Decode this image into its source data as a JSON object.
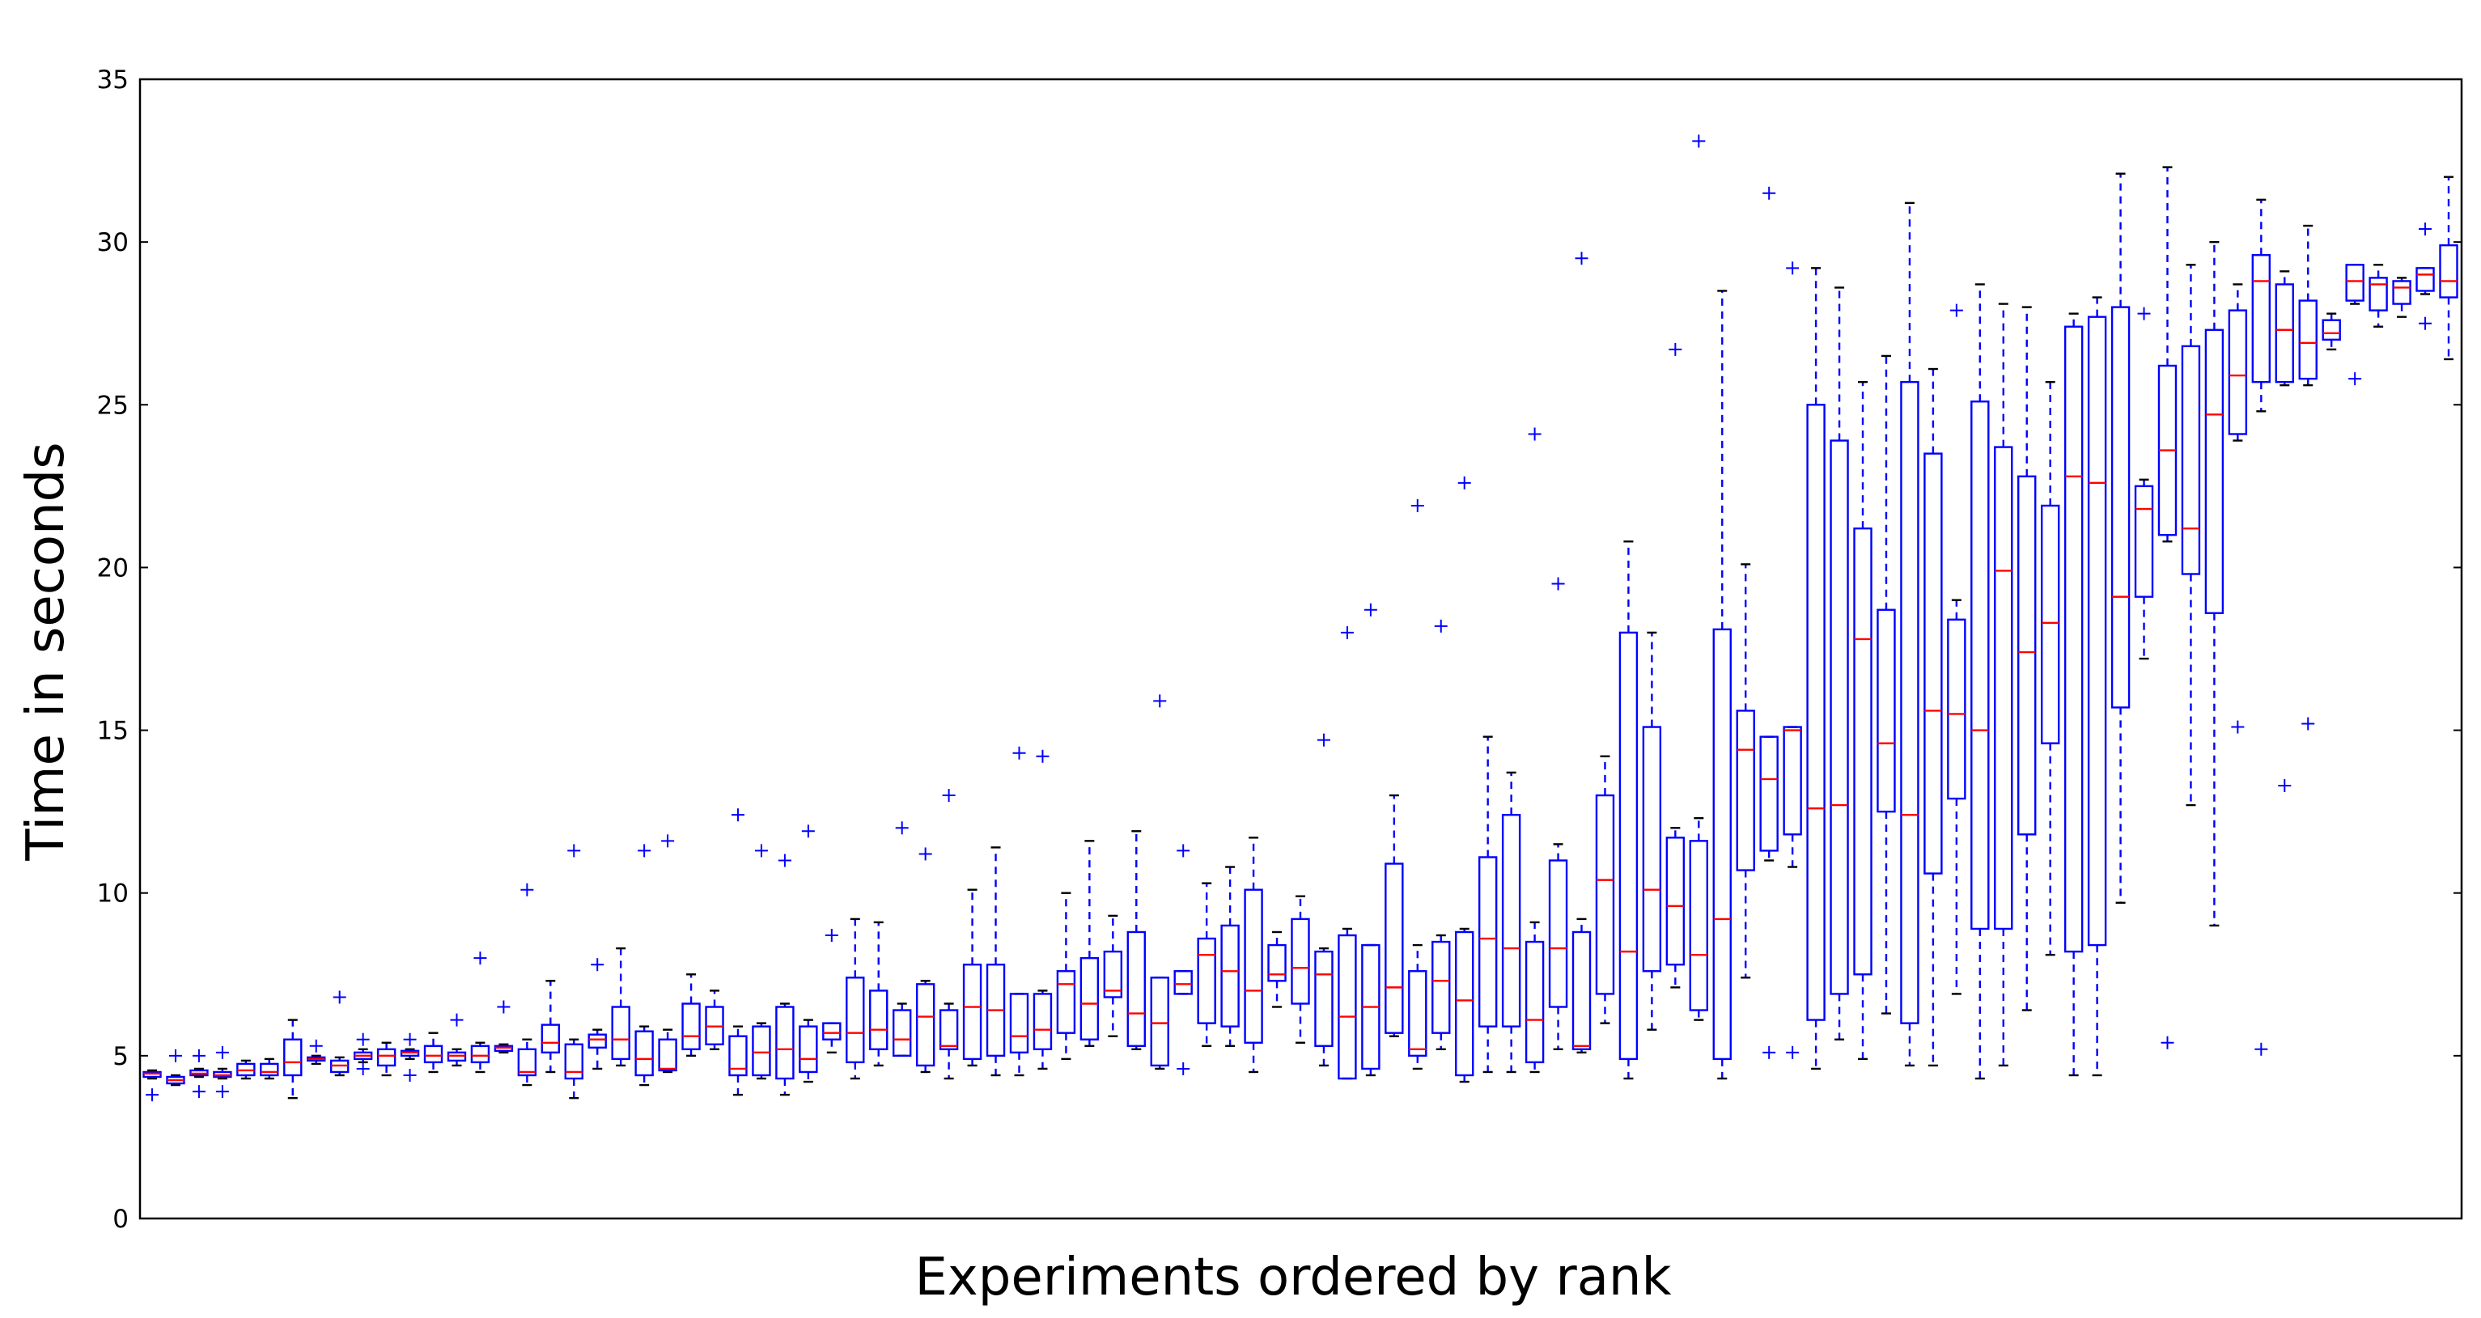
{
  "chart_data": {
    "type": "boxplot",
    "xlabel": "Experiments ordered by rank",
    "ylabel": "Time in seconds",
    "ylim": [
      0,
      35
    ],
    "yticks": [
      0,
      5,
      10,
      15,
      20,
      25,
      30,
      35
    ],
    "grid": false,
    "colors": {
      "box": "#0000ff",
      "median": "#ff0000",
      "whisker": "#0000ff",
      "cap": "#000000",
      "outlier": "#0000ff"
    },
    "boxes": [
      {
        "wl": 4.3,
        "q1": 4.35,
        "med": 4.45,
        "q3": 4.5,
        "wh": 4.55,
        "out": [
          3.8
        ]
      },
      {
        "wl": 4.1,
        "q1": 4.15,
        "med": 4.25,
        "q3": 4.35,
        "wh": 4.4,
        "out": [
          5.0
        ]
      },
      {
        "wl": 4.35,
        "q1": 4.4,
        "med": 4.45,
        "q3": 4.55,
        "wh": 4.6,
        "out": [
          3.9,
          5.0
        ]
      },
      {
        "wl": 4.3,
        "q1": 4.35,
        "med": 4.4,
        "q3": 4.5,
        "wh": 4.6,
        "out": [
          3.9,
          5.1
        ]
      },
      {
        "wl": 4.3,
        "q1": 4.4,
        "med": 4.55,
        "q3": 4.75,
        "wh": 4.85,
        "out": []
      },
      {
        "wl": 4.3,
        "q1": 4.4,
        "med": 4.5,
        "q3": 4.75,
        "wh": 4.9,
        "out": []
      },
      {
        "wl": 3.7,
        "q1": 4.4,
        "med": 4.8,
        "q3": 5.5,
        "wh": 6.1,
        "out": []
      },
      {
        "wl": 4.75,
        "q1": 4.85,
        "med": 4.9,
        "q3": 4.95,
        "wh": 5.0,
        "out": [
          5.3
        ]
      },
      {
        "wl": 4.4,
        "q1": 4.5,
        "med": 4.7,
        "q3": 4.85,
        "wh": 4.95,
        "out": [
          6.8
        ]
      },
      {
        "wl": 4.8,
        "q1": 4.9,
        "med": 5.0,
        "q3": 5.1,
        "wh": 5.2,
        "out": [
          4.6,
          5.5
        ]
      },
      {
        "wl": 4.4,
        "q1": 4.7,
        "med": 5.0,
        "q3": 5.2,
        "wh": 5.4,
        "out": []
      },
      {
        "wl": 4.9,
        "q1": 5.0,
        "med": 5.1,
        "q3": 5.15,
        "wh": 5.2,
        "out": [
          4.4,
          5.5
        ]
      },
      {
        "wl": 4.5,
        "q1": 4.8,
        "med": 5.0,
        "q3": 5.3,
        "wh": 5.7,
        "out": []
      },
      {
        "wl": 4.7,
        "q1": 4.85,
        "med": 5.0,
        "q3": 5.1,
        "wh": 5.2,
        "out": [
          6.1
        ]
      },
      {
        "wl": 4.5,
        "q1": 4.8,
        "med": 5.0,
        "q3": 5.3,
        "wh": 5.4,
        "out": [
          8.0
        ]
      },
      {
        "wl": 5.1,
        "q1": 5.15,
        "med": 5.25,
        "q3": 5.3,
        "wh": 5.35,
        "out": [
          6.5
        ]
      },
      {
        "wl": 4.1,
        "q1": 4.4,
        "med": 4.5,
        "q3": 5.2,
        "wh": 5.5,
        "out": [
          10.1
        ]
      },
      {
        "wl": 4.5,
        "q1": 5.1,
        "med": 5.4,
        "q3": 5.95,
        "wh": 7.3,
        "out": []
      },
      {
        "wl": 3.7,
        "q1": 4.3,
        "med": 4.5,
        "q3": 5.35,
        "wh": 5.5,
        "out": [
          11.3
        ]
      },
      {
        "wl": 4.6,
        "q1": 5.25,
        "med": 5.5,
        "q3": 5.65,
        "wh": 5.8,
        "out": [
          7.8
        ]
      },
      {
        "wl": 4.7,
        "q1": 4.9,
        "med": 5.5,
        "q3": 6.5,
        "wh": 8.3,
        "out": []
      },
      {
        "wl": 4.1,
        "q1": 4.4,
        "med": 4.9,
        "q3": 5.75,
        "wh": 5.9,
        "out": [
          11.3
        ]
      },
      {
        "wl": 4.5,
        "q1": 4.55,
        "med": 4.6,
        "q3": 5.5,
        "wh": 5.8,
        "out": [
          11.6
        ]
      },
      {
        "wl": 5.0,
        "q1": 5.2,
        "med": 5.6,
        "q3": 6.6,
        "wh": 7.5,
        "out": []
      },
      {
        "wl": 5.2,
        "q1": 5.35,
        "med": 5.9,
        "q3": 6.5,
        "wh": 7.0,
        "out": []
      },
      {
        "wl": 3.8,
        "q1": 4.4,
        "med": 4.6,
        "q3": 5.6,
        "wh": 5.9,
        "out": [
          12.4
        ]
      },
      {
        "wl": 4.3,
        "q1": 4.4,
        "med": 5.1,
        "q3": 5.9,
        "wh": 6.0,
        "out": [
          11.3
        ]
      },
      {
        "wl": 3.8,
        "q1": 4.3,
        "med": 5.2,
        "q3": 6.5,
        "wh": 6.6,
        "out": [
          11.0
        ]
      },
      {
        "wl": 4.2,
        "q1": 4.5,
        "med": 4.9,
        "q3": 5.9,
        "wh": 6.1,
        "out": [
          11.9
        ]
      },
      {
        "wl": 5.1,
        "q1": 5.5,
        "med": 5.7,
        "q3": 6.0,
        "wh": 6.0,
        "out": [
          8.7
        ]
      },
      {
        "wl": 4.3,
        "q1": 4.8,
        "med": 5.7,
        "q3": 7.4,
        "wh": 9.2,
        "out": []
      },
      {
        "wl": 4.7,
        "q1": 5.2,
        "med": 5.8,
        "q3": 7.0,
        "wh": 9.1,
        "out": []
      },
      {
        "wl": 5.0,
        "q1": 5.0,
        "med": 5.5,
        "q3": 6.4,
        "wh": 6.6,
        "out": [
          12.0
        ]
      },
      {
        "wl": 4.5,
        "q1": 4.7,
        "med": 6.2,
        "q3": 7.2,
        "wh": 7.3,
        "out": [
          11.2
        ]
      },
      {
        "wl": 4.3,
        "q1": 5.2,
        "med": 5.3,
        "q3": 6.4,
        "wh": 6.6,
        "out": [
          13.0
        ]
      },
      {
        "wl": 4.7,
        "q1": 4.9,
        "med": 6.5,
        "q3": 7.8,
        "wh": 10.1,
        "out": []
      },
      {
        "wl": 4.4,
        "q1": 5.0,
        "med": 6.4,
        "q3": 7.8,
        "wh": 11.4,
        "out": []
      },
      {
        "wl": 4.4,
        "q1": 5.1,
        "med": 5.6,
        "q3": 6.9,
        "wh": 6.9,
        "out": [
          14.3
        ]
      },
      {
        "wl": 4.6,
        "q1": 5.2,
        "med": 5.8,
        "q3": 6.9,
        "wh": 7.0,
        "out": [
          14.2
        ]
      },
      {
        "wl": 4.9,
        "q1": 5.7,
        "med": 7.2,
        "q3": 7.6,
        "wh": 10.0,
        "out": []
      },
      {
        "wl": 5.3,
        "q1": 5.5,
        "med": 6.6,
        "q3": 8.0,
        "wh": 11.6,
        "out": []
      },
      {
        "wl": 5.6,
        "q1": 6.8,
        "med": 7.0,
        "q3": 8.2,
        "wh": 9.3,
        "out": []
      },
      {
        "wl": 5.2,
        "q1": 5.3,
        "med": 6.3,
        "q3": 8.8,
        "wh": 11.9,
        "out": []
      },
      {
        "wl": 4.6,
        "q1": 4.7,
        "med": 6.0,
        "q3": 7.4,
        "wh": 7.4,
        "out": [
          15.9
        ]
      },
      {
        "wl": 6.9,
        "q1": 6.9,
        "med": 7.2,
        "q3": 7.6,
        "wh": 7.6,
        "out": [
          11.3,
          4.6
        ]
      },
      {
        "wl": 5.3,
        "q1": 6.0,
        "med": 8.1,
        "q3": 8.6,
        "wh": 10.3,
        "out": []
      },
      {
        "wl": 5.3,
        "q1": 5.9,
        "med": 7.6,
        "q3": 9.0,
        "wh": 10.8,
        "out": []
      },
      {
        "wl": 4.5,
        "q1": 5.4,
        "med": 7.0,
        "q3": 10.1,
        "wh": 11.7,
        "out": []
      },
      {
        "wl": 6.5,
        "q1": 7.3,
        "med": 7.5,
        "q3": 8.4,
        "wh": 8.8,
        "out": []
      },
      {
        "wl": 5.4,
        "q1": 6.6,
        "med": 7.7,
        "q3": 9.2,
        "wh": 9.9,
        "out": []
      },
      {
        "wl": 4.7,
        "q1": 5.3,
        "med": 7.5,
        "q3": 8.2,
        "wh": 8.3,
        "out": [
          14.7
        ]
      },
      {
        "wl": 4.3,
        "q1": 4.3,
        "med": 6.2,
        "q3": 8.7,
        "wh": 8.9,
        "out": [
          18.0
        ]
      },
      {
        "wl": 4.4,
        "q1": 4.6,
        "med": 6.5,
        "q3": 8.4,
        "wh": 8.4,
        "out": [
          18.7
        ]
      },
      {
        "wl": 5.6,
        "q1": 5.7,
        "med": 7.1,
        "q3": 10.9,
        "wh": 13.0,
        "out": []
      },
      {
        "wl": 4.6,
        "q1": 5.0,
        "med": 5.2,
        "q3": 7.6,
        "wh": 8.4,
        "out": [
          21.9
        ]
      },
      {
        "wl": 5.2,
        "q1": 5.7,
        "med": 7.3,
        "q3": 8.5,
        "wh": 8.7,
        "out": [
          18.2
        ]
      },
      {
        "wl": 4.2,
        "q1": 4.4,
        "med": 6.7,
        "q3": 8.8,
        "wh": 8.9,
        "out": [
          22.6
        ]
      },
      {
        "wl": 4.5,
        "q1": 5.9,
        "med": 8.6,
        "q3": 11.1,
        "wh": 14.8,
        "out": []
      },
      {
        "wl": 4.5,
        "q1": 5.9,
        "med": 8.3,
        "q3": 12.4,
        "wh": 13.7,
        "out": []
      },
      {
        "wl": 4.5,
        "q1": 4.8,
        "med": 6.1,
        "q3": 8.5,
        "wh": 9.1,
        "out": [
          24.1
        ]
      },
      {
        "wl": 5.2,
        "q1": 6.5,
        "med": 8.3,
        "q3": 11.0,
        "wh": 11.5,
        "out": [
          19.5
        ]
      },
      {
        "wl": 5.1,
        "q1": 5.2,
        "med": 5.3,
        "q3": 8.8,
        "wh": 9.2,
        "out": [
          29.5
        ]
      },
      {
        "wl": 6.0,
        "q1": 6.9,
        "med": 10.4,
        "q3": 13.0,
        "wh": 14.2,
        "out": []
      },
      {
        "wl": 4.3,
        "q1": 4.9,
        "med": 8.2,
        "q3": 18.0,
        "wh": 20.8,
        "out": []
      },
      {
        "wl": 5.8,
        "q1": 7.6,
        "med": 10.1,
        "q3": 15.1,
        "wh": 18.0,
        "out": []
      },
      {
        "wl": 7.1,
        "q1": 7.8,
        "med": 9.6,
        "q3": 11.7,
        "wh": 12.0,
        "out": [
          26.7
        ]
      },
      {
        "wl": 6.1,
        "q1": 6.4,
        "med": 8.1,
        "q3": 11.6,
        "wh": 12.3,
        "out": [
          33.1
        ]
      },
      {
        "wl": 4.3,
        "q1": 4.9,
        "med": 9.2,
        "q3": 18.1,
        "wh": 28.5,
        "out": []
      },
      {
        "wl": 7.4,
        "q1": 10.7,
        "med": 14.4,
        "q3": 15.6,
        "wh": 20.1,
        "out": []
      },
      {
        "wl": 11.0,
        "q1": 11.3,
        "med": 13.5,
        "q3": 14.8,
        "wh": 14.8,
        "out": [
          31.5,
          5.1
        ]
      },
      {
        "wl": 10.8,
        "q1": 11.8,
        "med": 15.0,
        "q3": 15.1,
        "wh": 15.1,
        "out": [
          29.2,
          5.1
        ]
      },
      {
        "wl": 4.6,
        "q1": 6.1,
        "med": 12.6,
        "q3": 25.0,
        "wh": 29.2,
        "out": []
      },
      {
        "wl": 5.5,
        "q1": 6.9,
        "med": 12.7,
        "q3": 23.9,
        "wh": 28.6,
        "out": []
      },
      {
        "wl": 4.9,
        "q1": 7.5,
        "med": 17.8,
        "q3": 21.2,
        "wh": 25.7,
        "out": []
      },
      {
        "wl": 6.3,
        "q1": 12.5,
        "med": 14.6,
        "q3": 18.7,
        "wh": 26.5,
        "out": []
      },
      {
        "wl": 4.7,
        "q1": 6.0,
        "med": 12.4,
        "q3": 25.7,
        "wh": 31.2,
        "out": []
      },
      {
        "wl": 4.7,
        "q1": 10.6,
        "med": 15.6,
        "q3": 23.5,
        "wh": 26.1,
        "out": []
      },
      {
        "wl": 6.9,
        "q1": 12.9,
        "med": 15.5,
        "q3": 18.4,
        "wh": 19.0,
        "out": [
          27.9
        ]
      },
      {
        "wl": 4.3,
        "q1": 8.9,
        "med": 15.0,
        "q3": 25.1,
        "wh": 28.7,
        "out": []
      },
      {
        "wl": 4.7,
        "q1": 8.9,
        "med": 19.9,
        "q3": 23.7,
        "wh": 28.1,
        "out": []
      },
      {
        "wl": 6.4,
        "q1": 11.8,
        "med": 17.4,
        "q3": 22.8,
        "wh": 28.0,
        "out": []
      },
      {
        "wl": 8.1,
        "q1": 14.6,
        "med": 18.3,
        "q3": 21.9,
        "wh": 25.7,
        "out": []
      },
      {
        "wl": 4.4,
        "q1": 8.2,
        "med": 22.8,
        "q3": 27.4,
        "wh": 27.8,
        "out": []
      },
      {
        "wl": 4.4,
        "q1": 8.4,
        "med": 22.6,
        "q3": 27.7,
        "wh": 28.3,
        "out": []
      },
      {
        "wl": 9.7,
        "q1": 15.7,
        "med": 19.1,
        "q3": 28.0,
        "wh": 32.1,
        "out": []
      },
      {
        "wl": 17.2,
        "q1": 19.1,
        "med": 21.8,
        "q3": 22.5,
        "wh": 22.7,
        "out": [
          27.8
        ]
      },
      {
        "wl": 20.8,
        "q1": 21.0,
        "med": 23.6,
        "q3": 26.2,
        "wh": 32.3,
        "out": [
          5.4
        ]
      },
      {
        "wl": 12.7,
        "q1": 19.8,
        "med": 21.2,
        "q3": 26.8,
        "wh": 29.3,
        "out": []
      },
      {
        "wl": 9.0,
        "q1": 18.6,
        "med": 24.7,
        "q3": 27.3,
        "wh": 30.0,
        "out": []
      },
      {
        "wl": 23.9,
        "q1": 24.1,
        "med": 25.9,
        "q3": 27.9,
        "wh": 28.7,
        "out": [
          15.1
        ]
      },
      {
        "wl": 24.8,
        "q1": 25.7,
        "med": 28.8,
        "q3": 29.6,
        "wh": 31.3,
        "out": [
          5.2
        ]
      },
      {
        "wl": 25.6,
        "q1": 25.7,
        "med": 27.3,
        "q3": 28.7,
        "wh": 29.1,
        "out": [
          13.3
        ]
      },
      {
        "wl": 25.6,
        "q1": 25.8,
        "med": 26.9,
        "q3": 28.2,
        "wh": 30.5,
        "out": [
          15.2
        ]
      },
      {
        "wl": 26.7,
        "q1": 27.0,
        "med": 27.2,
        "q3": 27.6,
        "wh": 27.8,
        "out": []
      },
      {
        "wl": 28.1,
        "q1": 28.2,
        "med": 28.8,
        "q3": 29.3,
        "wh": 29.3,
        "out": [
          25.8
        ]
      },
      {
        "wl": 27.4,
        "q1": 27.9,
        "med": 28.7,
        "q3": 28.9,
        "wh": 29.3,
        "out": []
      },
      {
        "wl": 27.7,
        "q1": 28.1,
        "med": 28.6,
        "q3": 28.8,
        "wh": 28.9,
        "out": []
      },
      {
        "wl": 28.4,
        "q1": 28.5,
        "med": 29.0,
        "q3": 29.2,
        "wh": 29.2,
        "out": [
          30.4,
          27.5
        ]
      },
      {
        "wl": 26.4,
        "q1": 28.3,
        "med": 28.8,
        "q3": 29.9,
        "wh": 32.0,
        "out": []
      }
    ]
  }
}
